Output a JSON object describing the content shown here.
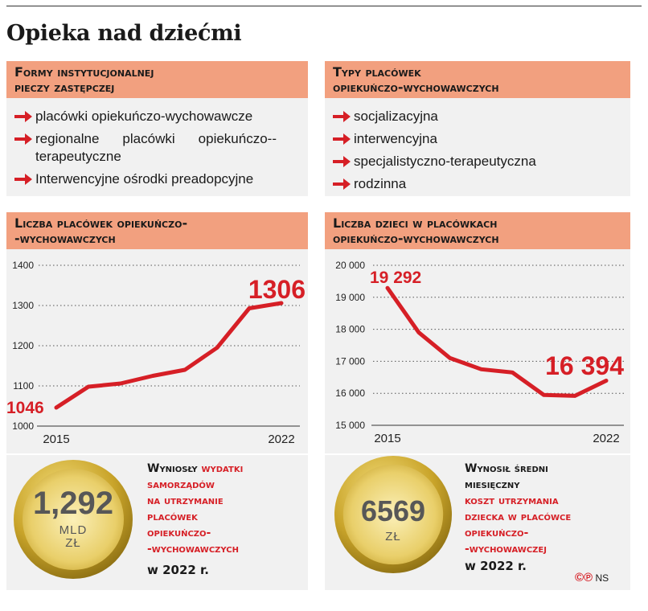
{
  "title": "Opieka nad dziećmi",
  "box_forms": {
    "header_line1": "Formy instytucjonalnej",
    "header_line2": "pieczy zastępczej",
    "items": [
      "placówki opiekuńczo-wychowawcze",
      "regionalne placówki opiekuńczo--terapeutyczne",
      "Interwencyjne ośrodki preadopcyjne"
    ]
  },
  "box_types": {
    "header_line1": "Typy placówek",
    "header_line2": "opiekuńczo-wychowawczych",
    "items": [
      "socjalizacyjna",
      "interwencyjna",
      "specjalistyczno-terapeutyczna",
      "rodzinna"
    ]
  },
  "chart_data": [
    {
      "type": "line",
      "title": "Liczba placówek opiekuńczo--wychowawczych",
      "title_line1": "Liczba placówek opiekuńczo-",
      "title_line2": "-wychowawczych",
      "x": [
        2015,
        2016,
        2017,
        2018,
        2019,
        2020,
        2021,
        2022
      ],
      "x_tick_labels": [
        "2015",
        "2022"
      ],
      "y_ticks": [
        "1400",
        "1300",
        "1200",
        "1100",
        "1000"
      ],
      "ylim": [
        1000,
        1400
      ],
      "values": [
        1046,
        1098,
        1106,
        1125,
        1140,
        1195,
        1293,
        1306
      ],
      "start_label": "1046",
      "end_label": "1306",
      "grid": true,
      "color": "#d61f26"
    },
    {
      "type": "line",
      "title": "Liczba dzieci w placówkach opiekuńczo-wychowawczych",
      "title_line1": "Liczba dzieci w placówkach",
      "title_line2": "opiekuńczo-wychowawczych",
      "x": [
        2015,
        2016,
        2017,
        2018,
        2019,
        2020,
        2021,
        2022
      ],
      "x_tick_labels": [
        "2015",
        "2022"
      ],
      "y_ticks": [
        "20 000",
        "19 000",
        "18 000",
        "17 000",
        "16 000",
        "15 000"
      ],
      "ylim": [
        15000,
        20000
      ],
      "values": [
        19292,
        17900,
        17100,
        16750,
        16650,
        15950,
        15920,
        16394
      ],
      "start_label": "19 292",
      "end_label": "16 394",
      "grid": true,
      "color": "#d61f26"
    }
  ],
  "spending": {
    "coin_value": "1,292",
    "coin_unit1": "MLD",
    "coin_unit2": "ZŁ",
    "line1": "Wyniosły",
    "line1_red": "wydatki",
    "line2_red": "samorządów",
    "line3_red": "na utrzymanie",
    "line4_red": "placówek",
    "line5_red": "opiekuńczo-",
    "line6_red": "-wychowawczych",
    "line7": "w 2022 r."
  },
  "cost": {
    "coin_value": "6569",
    "coin_unit": "ZŁ",
    "line1": "Wynosił średni",
    "line2": "miesięczny",
    "line3_red": "koszt utrzymania",
    "line4_red": "dziecka w placówce",
    "line5_red": "opiekuńczo-",
    "line6_red": "-wychowawczej",
    "line7": "w 2022 r."
  },
  "credit": {
    "mark": "©℗",
    "author": "NS"
  }
}
